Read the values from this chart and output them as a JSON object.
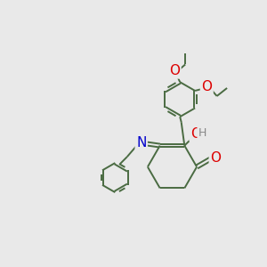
{
  "bg_color": "#e9e9e9",
  "bond_color": "#4a6b42",
  "bond_width": 1.4,
  "dbl_off": 0.055,
  "atom_colors": {
    "O": "#dd0000",
    "N": "#0000cc",
    "H": "#888888"
  },
  "font_size": 9.5
}
